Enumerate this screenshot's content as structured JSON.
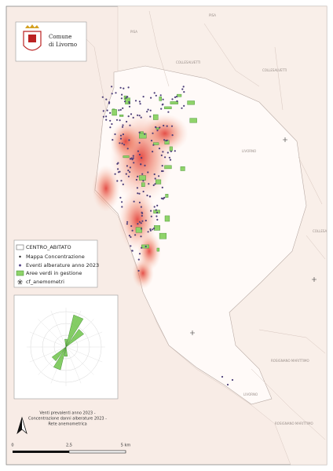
{
  "header": {
    "title_line1": "Comune",
    "title_line2": "di Livorno"
  },
  "legend": {
    "items": [
      "CENTRO_ABITATO",
      "Mappa Concentrazione",
      "Eventi alberature anno 2023",
      "Aree verdi in gestione",
      "cf_anemometri"
    ]
  },
  "caption": {
    "lines": [
      "Venti prevalenti anno 2023 -",
      "Concentrazione danni alberature 2023 -",
      "Rete anemometrica"
    ]
  },
  "scale": {
    "labels": [
      "0",
      "2,5",
      "5 km"
    ]
  },
  "places": [
    "PISA",
    "PISA",
    "COLLESALVETTI",
    "COLLESALVETTI",
    "LIVORNO",
    "COLLESA",
    "ROSIGNANO MARITTIMO",
    "LIVORNO",
    "ROSIGNANO MARITTIMO"
  ]
}
